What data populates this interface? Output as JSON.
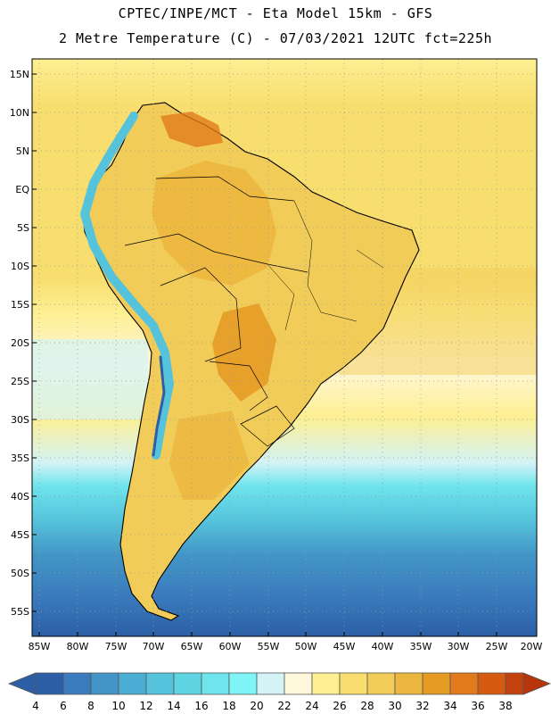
{
  "header": {
    "line1": "CPTEC/INPE/MCT -  Eta Model 15km - GFS",
    "line2": "2 Metre Temperature (C) - 07/03/2021 12UTC fct=225h"
  },
  "latitude_labels": [
    "15N",
    "10N",
    "5N",
    "EQ",
    "5S",
    "10S",
    "15S",
    "20S",
    "25S",
    "30S",
    "35S",
    "40S",
    "45S",
    "50S",
    "55S"
  ],
  "longitude_labels": [
    "85W",
    "80W",
    "75W",
    "70W",
    "65W",
    "60W",
    "55W",
    "50W",
    "45W",
    "40W",
    "35W",
    "30W",
    "25W",
    "20W"
  ],
  "colorbar": {
    "labels": [
      "4",
      "6",
      "8",
      "10",
      "12",
      "14",
      "16",
      "18",
      "20",
      "22",
      "24",
      "26",
      "28",
      "30",
      "32",
      "34",
      "36",
      "38"
    ],
    "colors": [
      "#2c5fa6",
      "#3a7bbd",
      "#4295c6",
      "#4aaed4",
      "#55c3dc",
      "#5fd5e3",
      "#6ee4ec",
      "#7ff5f7",
      "#d3f3f7",
      "#fff7dc",
      "#fdef92",
      "#f8de6e",
      "#f2cc58",
      "#ecb73f",
      "#e69b25",
      "#e17a1c",
      "#d65a12",
      "#c3410c",
      "#b8350b"
    ]
  }
}
